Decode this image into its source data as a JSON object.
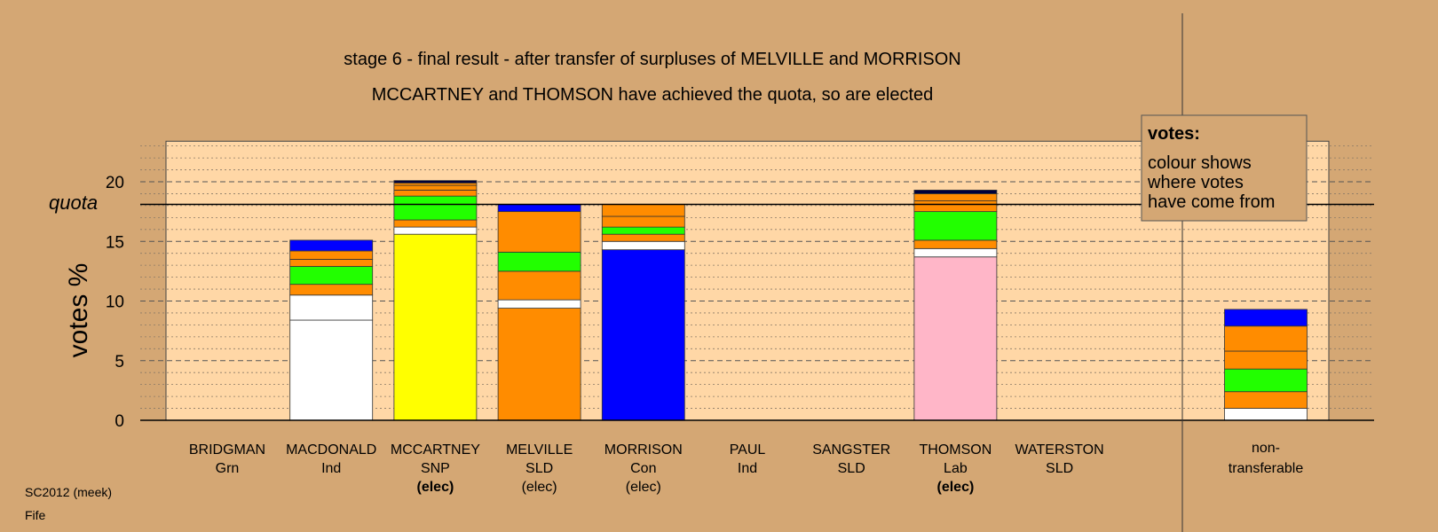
{
  "chart_data": {
    "type": "bar",
    "title": "stage 6 - final result - after transfer of surpluses of MELVILLE and MORRISON",
    "subtitle": "MCCARTNEY and THOMSON have achieved the quota, so are elected",
    "ylabel": "votes %",
    "ylim": [
      0,
      23.4
    ],
    "yticks": [
      0,
      5,
      10,
      15,
      20
    ],
    "quota": 18.1,
    "quota_label": "quota",
    "grid": true,
    "legend_placement": "top-right",
    "colors": {
      "own": "#ffffff",
      "white": "#ffffff",
      "yellow": "#ffff00",
      "orange": "#ff8c00",
      "green": "#22ff00",
      "blue": "#0000ff",
      "pink": "#ffb6c8",
      "navy": "#00003a",
      "plot_bg": "#ffd7a6",
      "page_bg": "#d4a774"
    },
    "candidates": [
      {
        "name": "BRIDGMAN",
        "party": "Grn",
        "elected": "",
        "segments": []
      },
      {
        "name": "MACDONALD",
        "party": "Ind",
        "elected": "",
        "segments": [
          {
            "color": "white",
            "value": 8.4
          },
          {
            "color": "white",
            "value": 2.1
          },
          {
            "color": "orange",
            "value": 0.9
          },
          {
            "color": "green",
            "value": 1.5
          },
          {
            "color": "orange",
            "value": 0.6
          },
          {
            "color": "orange",
            "value": 0.7
          },
          {
            "color": "blue",
            "value": 0.9
          }
        ]
      },
      {
        "name": "MCCARTNEY",
        "party": "SNP",
        "elected": "(elec)",
        "segments": [
          {
            "color": "yellow",
            "value": 15.6
          },
          {
            "color": "white",
            "value": 0.6
          },
          {
            "color": "orange",
            "value": 0.6
          },
          {
            "color": "green",
            "value": 2.0
          },
          {
            "color": "orange",
            "value": 0.5
          },
          {
            "color": "orange",
            "value": 0.4
          },
          {
            "color": "orange",
            "value": 0.2
          },
          {
            "color": "navy",
            "value": 0.2
          }
        ]
      },
      {
        "name": "MELVILLE",
        "party": "SLD",
        "elected": "(elec)",
        "segments": [
          {
            "color": "orange",
            "value": 9.4
          },
          {
            "color": "white",
            "value": 0.7
          },
          {
            "color": "orange",
            "value": 2.4
          },
          {
            "color": "green",
            "value": 1.6
          },
          {
            "color": "orange",
            "value": 3.4
          },
          {
            "color": "blue",
            "value": 0.6
          }
        ]
      },
      {
        "name": "MORRISON",
        "party": "Con",
        "elected": "(elec)",
        "segments": [
          {
            "color": "blue",
            "value": 14.3
          },
          {
            "color": "white",
            "value": 0.7
          },
          {
            "color": "orange",
            "value": 0.6
          },
          {
            "color": "green",
            "value": 0.6
          },
          {
            "color": "orange",
            "value": 0.9
          },
          {
            "color": "orange",
            "value": 1.0
          }
        ]
      },
      {
        "name": "PAUL",
        "party": "Ind",
        "elected": "",
        "segments": []
      },
      {
        "name": "SANGSTER",
        "party": "SLD",
        "elected": "",
        "segments": []
      },
      {
        "name": "THOMSON",
        "party": "Lab",
        "elected": "(elec)",
        "segments": [
          {
            "color": "pink",
            "value": 13.7
          },
          {
            "color": "white",
            "value": 0.7
          },
          {
            "color": "orange",
            "value": 0.7
          },
          {
            "color": "green",
            "value": 2.4
          },
          {
            "color": "orange",
            "value": 0.9
          },
          {
            "color": "orange",
            "value": 0.6
          },
          {
            "color": "navy",
            "value": 0.3
          }
        ]
      },
      {
        "name": "WATERSTON",
        "party": "SLD",
        "elected": "",
        "segments": []
      }
    ],
    "nontransferable": {
      "label_line1": "non-",
      "label_line2": "transferable",
      "segments": [
        {
          "color": "white",
          "value": 1.0
        },
        {
          "color": "orange",
          "value": 1.4
        },
        {
          "color": "green",
          "value": 1.9
        },
        {
          "color": "orange",
          "value": 1.5
        },
        {
          "color": "orange",
          "value": 2.1
        },
        {
          "color": "blue",
          "value": 1.4
        }
      ]
    },
    "legend": {
      "title": "votes:",
      "lines": [
        "colour shows",
        "where votes",
        "have come from"
      ]
    }
  },
  "footer": {
    "line1": "SC2012 (meek)",
    "line2": "Fife"
  }
}
